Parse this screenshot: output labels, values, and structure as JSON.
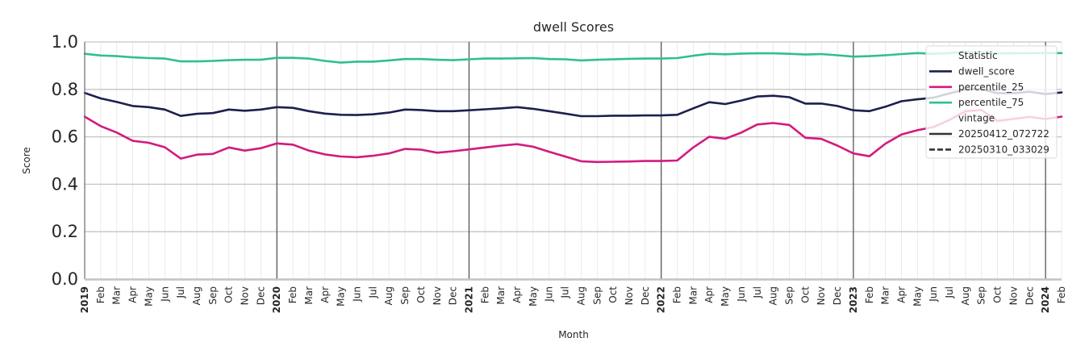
{
  "chart_data": {
    "type": "line",
    "title": "dwell Scores",
    "xlabel": "Month",
    "ylabel": "Score",
    "ylim": [
      0.0,
      1.0
    ],
    "yticks": [
      "0.0",
      "0.2",
      "0.4",
      "0.6",
      "0.8",
      "1.0"
    ],
    "xlim": [
      "2019-01",
      "2024-02"
    ],
    "x_tick_labels": [
      "2019",
      "Feb",
      "Mar",
      "Apr",
      "May",
      "Jun",
      "Jul",
      "Aug",
      "Sep",
      "Oct",
      "Nov",
      "Dec",
      "2020",
      "Feb",
      "Mar",
      "Apr",
      "May",
      "Jun",
      "Jul",
      "Aug",
      "Sep",
      "Oct",
      "Nov",
      "Dec",
      "2021",
      "Feb",
      "Mar",
      "Apr",
      "May",
      "Jun",
      "Jul",
      "Aug",
      "Sep",
      "Oct",
      "Nov",
      "Dec",
      "2022",
      "Feb",
      "Mar",
      "Apr",
      "May",
      "Jun",
      "Jul",
      "Aug",
      "Sep",
      "Oct",
      "Nov",
      "Dec",
      "2023",
      "Feb",
      "Mar",
      "Apr",
      "May",
      "Jun",
      "Jul",
      "Aug",
      "Sep",
      "Oct",
      "Nov",
      "Dec",
      "2024",
      "Feb"
    ],
    "year_lines": [
      "2020-01",
      "2021-01",
      "2022-01",
      "2023-01",
      "2024-01"
    ],
    "grid": true,
    "legend": {
      "placement": "top-right",
      "entries": [
        {
          "text": "Statistic",
          "kind": "header"
        },
        {
          "text": "dwell_score",
          "kind": "color",
          "color": "#1c1f4d"
        },
        {
          "text": "percentile_25",
          "kind": "color",
          "color": "#d31a7f"
        },
        {
          "text": "percentile_75",
          "kind": "color",
          "color": "#2ec08f"
        },
        {
          "text": "vintage",
          "kind": "header"
        },
        {
          "text": "20250412_072722",
          "kind": "solid"
        },
        {
          "text": "20250310_033029",
          "kind": "dashed"
        }
      ]
    },
    "series": [
      {
        "name": "dwell_score",
        "color": "#1c1f4d",
        "style": "solid",
        "x": [
          "2019-01",
          "2019-02",
          "2019-03",
          "2019-04",
          "2019-05",
          "2019-06",
          "2019-07",
          "2019-08",
          "2019-09",
          "2019-10",
          "2019-11",
          "2019-12",
          "2020-01",
          "2020-02",
          "2020-03",
          "2020-04",
          "2020-05",
          "2020-06",
          "2020-07",
          "2020-08",
          "2020-09",
          "2020-10",
          "2020-11",
          "2020-12",
          "2021-01",
          "2021-02",
          "2021-03",
          "2021-04",
          "2021-05",
          "2021-06",
          "2021-07",
          "2021-08",
          "2021-09",
          "2021-10",
          "2021-11",
          "2021-12",
          "2022-01",
          "2022-02",
          "2022-03",
          "2022-04",
          "2022-05",
          "2022-06",
          "2022-07",
          "2022-08",
          "2022-09",
          "2022-10",
          "2022-11",
          "2022-12",
          "2023-01",
          "2023-02",
          "2023-03",
          "2023-04",
          "2023-05",
          "2023-06",
          "2023-07",
          "2023-08",
          "2023-09",
          "2023-10",
          "2023-11",
          "2023-12",
          "2024-01",
          "2024-02"
        ],
        "values": [
          0.785,
          0.762,
          0.747,
          0.73,
          0.725,
          0.715,
          0.688,
          0.697,
          0.7,
          0.715,
          0.71,
          0.715,
          0.725,
          0.722,
          0.708,
          0.698,
          0.693,
          0.692,
          0.695,
          0.702,
          0.715,
          0.713,
          0.708,
          0.708,
          0.712,
          0.716,
          0.72,
          0.725,
          0.718,
          0.708,
          0.698,
          0.687,
          0.687,
          0.689,
          0.689,
          0.69,
          0.69,
          0.693,
          0.72,
          0.746,
          0.738,
          0.753,
          0.77,
          0.773,
          0.767,
          0.74,
          0.74,
          0.73,
          0.712,
          0.708,
          0.727,
          0.75,
          0.758,
          0.765,
          0.783,
          0.8,
          0.801,
          0.784,
          0.784,
          0.79,
          0.78,
          0.787
        ]
      },
      {
        "name": "percentile_25",
        "color": "#d31a7f",
        "style": "solid",
        "x": [
          "2019-01",
          "2019-02",
          "2019-03",
          "2019-04",
          "2019-05",
          "2019-06",
          "2019-07",
          "2019-08",
          "2019-09",
          "2019-10",
          "2019-11",
          "2019-12",
          "2020-01",
          "2020-02",
          "2020-03",
          "2020-04",
          "2020-05",
          "2020-06",
          "2020-07",
          "2020-08",
          "2020-09",
          "2020-10",
          "2020-11",
          "2020-12",
          "2021-01",
          "2021-02",
          "2021-03",
          "2021-04",
          "2021-05",
          "2021-06",
          "2021-07",
          "2021-08",
          "2021-09",
          "2021-10",
          "2021-11",
          "2021-12",
          "2022-01",
          "2022-02",
          "2022-03",
          "2022-04",
          "2022-05",
          "2022-06",
          "2022-07",
          "2022-08",
          "2022-09",
          "2022-10",
          "2022-11",
          "2022-12",
          "2023-01",
          "2023-02",
          "2023-03",
          "2023-04",
          "2023-05",
          "2023-06",
          "2023-07",
          "2023-08",
          "2023-09",
          "2023-10",
          "2023-11",
          "2023-12",
          "2024-01",
          "2024-02"
        ],
        "values": [
          0.685,
          0.645,
          0.618,
          0.583,
          0.575,
          0.556,
          0.508,
          0.525,
          0.528,
          0.555,
          0.542,
          0.552,
          0.572,
          0.567,
          0.542,
          0.526,
          0.517,
          0.514,
          0.52,
          0.53,
          0.549,
          0.546,
          0.533,
          0.539,
          0.547,
          0.555,
          0.563,
          0.569,
          0.558,
          0.537,
          0.517,
          0.497,
          0.494,
          0.495,
          0.496,
          0.498,
          0.498,
          0.5,
          0.555,
          0.6,
          0.592,
          0.618,
          0.652,
          0.658,
          0.65,
          0.596,
          0.591,
          0.563,
          0.53,
          0.518,
          0.571,
          0.61,
          0.628,
          0.641,
          0.671,
          0.708,
          0.713,
          0.667,
          0.676,
          0.684,
          0.675,
          0.685
        ]
      },
      {
        "name": "percentile_75",
        "color": "#2ec08f",
        "style": "solid",
        "x": [
          "2019-01",
          "2019-02",
          "2019-03",
          "2019-04",
          "2019-05",
          "2019-06",
          "2019-07",
          "2019-08",
          "2019-09",
          "2019-10",
          "2019-11",
          "2019-12",
          "2020-01",
          "2020-02",
          "2020-03",
          "2020-04",
          "2020-05",
          "2020-06",
          "2020-07",
          "2020-08",
          "2020-09",
          "2020-10",
          "2020-11",
          "2020-12",
          "2021-01",
          "2021-02",
          "2021-03",
          "2021-04",
          "2021-05",
          "2021-06",
          "2021-07",
          "2021-08",
          "2021-09",
          "2021-10",
          "2021-11",
          "2021-12",
          "2022-01",
          "2022-02",
          "2022-03",
          "2022-04",
          "2022-05",
          "2022-06",
          "2022-07",
          "2022-08",
          "2022-09",
          "2022-10",
          "2022-11",
          "2022-12",
          "2023-01",
          "2023-02",
          "2023-03",
          "2023-04",
          "2023-05",
          "2023-06",
          "2023-07",
          "2023-08",
          "2023-09",
          "2023-10",
          "2023-11",
          "2023-12",
          "2024-01",
          "2024-02"
        ],
        "values": [
          0.95,
          0.943,
          0.94,
          0.935,
          0.932,
          0.93,
          0.918,
          0.918,
          0.92,
          0.923,
          0.925,
          0.925,
          0.933,
          0.933,
          0.93,
          0.92,
          0.913,
          0.917,
          0.917,
          0.922,
          0.928,
          0.928,
          0.925,
          0.923,
          0.927,
          0.93,
          0.93,
          0.931,
          0.932,
          0.928,
          0.927,
          0.922,
          0.925,
          0.927,
          0.929,
          0.93,
          0.93,
          0.932,
          0.942,
          0.95,
          0.948,
          0.951,
          0.952,
          0.952,
          0.95,
          0.947,
          0.949,
          0.944,
          0.938,
          0.94,
          0.944,
          0.949,
          0.953,
          0.95,
          0.953,
          0.957,
          0.957,
          0.952,
          0.952,
          0.953,
          0.953,
          0.953
        ]
      }
    ]
  }
}
